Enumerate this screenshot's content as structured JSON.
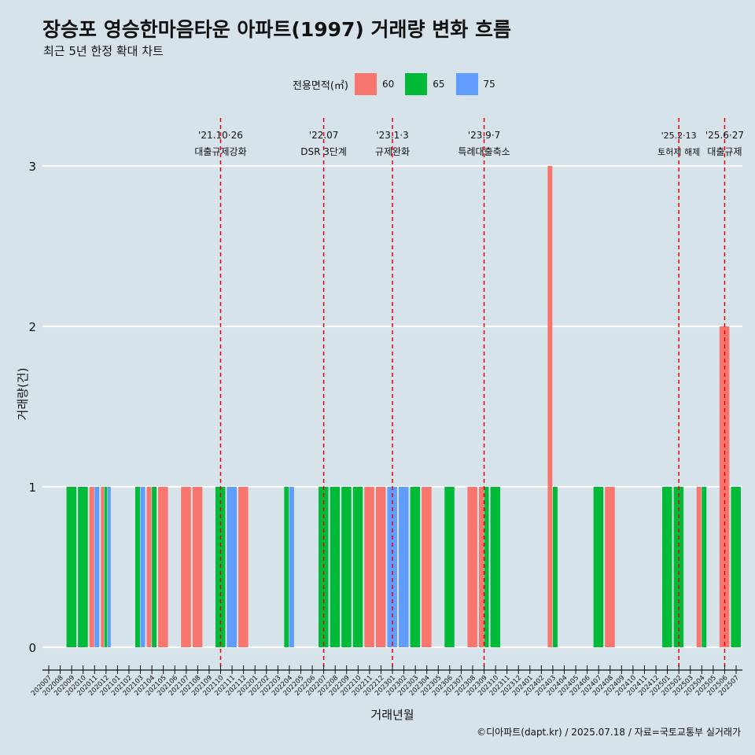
{
  "title": "장승포 영승한마음타운 아파트(1997) 거래량 변화 흐름",
  "subtitle": "최근 5년 한정 확대 차트",
  "caption": "©디아파트(dapt.kr) / 2025.07.18 / 자료=국토교통부 실거래가",
  "legend": {
    "title": "전용면적(㎡)",
    "items": [
      {
        "label": "60",
        "color": "#f8766d"
      },
      {
        "label": "65",
        "color": "#00ba38"
      },
      {
        "label": "75",
        "color": "#619cff"
      }
    ]
  },
  "chart_data": {
    "type": "bar",
    "xlabel": "거래년월",
    "ylabel": "거래량(건)",
    "ylim": [
      0,
      3
    ],
    "yticks": [
      0,
      1,
      2,
      3
    ],
    "grid": true,
    "legend_position": "top",
    "categories": [
      "202007",
      "202008",
      "202009",
      "202010",
      "202011",
      "202012",
      "202101",
      "202102",
      "202103",
      "202104",
      "202105",
      "202106",
      "202107",
      "202108",
      "202109",
      "202110",
      "202111",
      "202112",
      "202201",
      "202202",
      "202203",
      "202204",
      "202205",
      "202206",
      "202207",
      "202208",
      "202209",
      "202210",
      "202211",
      "202212",
      "202301",
      "202302",
      "202303",
      "202304",
      "202305",
      "202306",
      "202307",
      "202308",
      "202309",
      "202310",
      "202311",
      "202312",
      "202401",
      "202402",
      "202403",
      "202404",
      "202405",
      "202406",
      "202407",
      "202408",
      "202409",
      "202410",
      "202411",
      "202412",
      "202501",
      "202502",
      "202503",
      "202504",
      "202505",
      "202506",
      "202507"
    ],
    "series": [
      {
        "name": "60",
        "color": "#f8766d",
        "values": [
          0,
          0,
          0,
          0,
          1,
          1,
          0,
          0,
          0,
          1,
          1,
          0,
          1,
          1,
          0,
          0,
          0,
          1,
          0,
          0,
          0,
          0,
          0,
          0,
          0,
          0,
          0,
          0,
          1,
          1,
          0,
          0,
          0,
          1,
          0,
          0,
          0,
          1,
          1,
          0,
          0,
          0,
          0,
          0,
          3,
          0,
          0,
          0,
          0,
          1,
          0,
          0,
          0,
          0,
          0,
          0,
          0,
          1,
          0,
          2,
          0
        ]
      },
      {
        "name": "65",
        "color": "#00ba38",
        "values": [
          0,
          0,
          1,
          1,
          0,
          1,
          0,
          0,
          1,
          1,
          0,
          0,
          0,
          0,
          0,
          1,
          0,
          0,
          0,
          0,
          0,
          1,
          0,
          0,
          1,
          1,
          1,
          1,
          0,
          0,
          0,
          0,
          1,
          0,
          0,
          1,
          0,
          0,
          1,
          1,
          0,
          0,
          0,
          0,
          1,
          0,
          0,
          0,
          1,
          0,
          0,
          0,
          0,
          0,
          1,
          1,
          0,
          1,
          0,
          0,
          1
        ]
      },
      {
        "name": "75",
        "color": "#619cff",
        "values": [
          0,
          0,
          0,
          0,
          1,
          1,
          0,
          0,
          1,
          0,
          0,
          0,
          0,
          0,
          0,
          0,
          1,
          0,
          0,
          0,
          0,
          1,
          0,
          0,
          0,
          0,
          0,
          0,
          0,
          0,
          1,
          1,
          0,
          0,
          0,
          0,
          0,
          0,
          0,
          0,
          0,
          0,
          0,
          0,
          0,
          0,
          0,
          0,
          0,
          0,
          0,
          0,
          0,
          0,
          0,
          0,
          0,
          0,
          0,
          0,
          0
        ]
      }
    ],
    "annotations": [
      {
        "date": "202110",
        "line1": "'21.10·26",
        "line2": "대출규제강화"
      },
      {
        "date": "202207",
        "line1": "'22.07",
        "line2": "DSR 3단계"
      },
      {
        "date": "202301",
        "line1": "'23.1·3",
        "line2": "규제완화"
      },
      {
        "date": "202309",
        "line1": "'23.9·7",
        "line2": "특례대출축소"
      },
      {
        "date": "202502",
        "line1": "'25.2·13",
        "line2": "토허제 해제"
      },
      {
        "date": "202506",
        "line1": "'25.6·27",
        "line2": "대출규제"
      }
    ]
  }
}
